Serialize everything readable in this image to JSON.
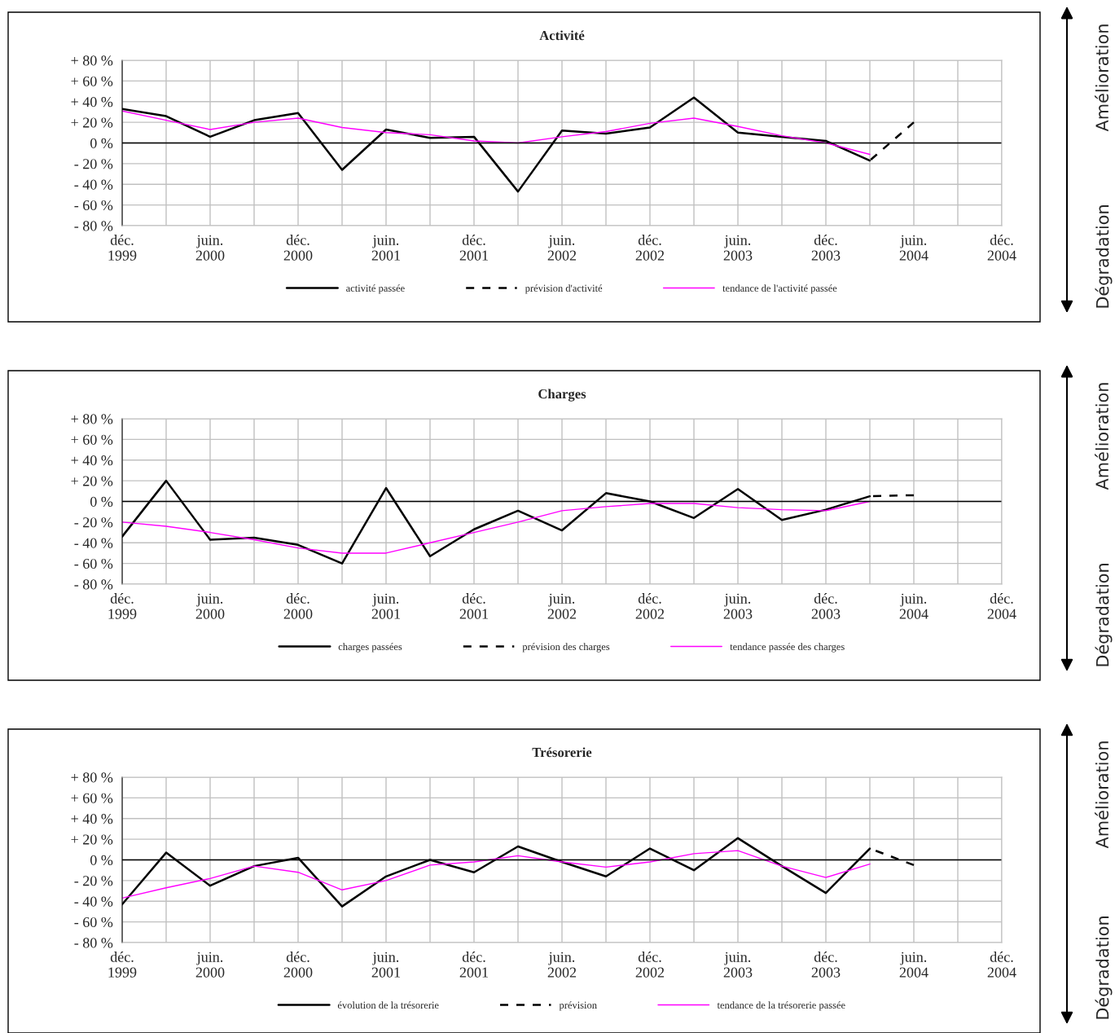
{
  "chart_data": [
    {
      "type": "line",
      "title": "Activité",
      "categories": [
        "déc.\n1999",
        null,
        "juin.\n2000",
        null,
        "déc.\n2000",
        null,
        "juin.\n2001",
        null,
        "déc.\n2001",
        null,
        "juin.\n2002",
        null,
        "déc.\n2002",
        null,
        "juin.\n2003",
        null,
        "déc.\n2003",
        null,
        "juin.\n2004",
        null,
        "déc.\n2004"
      ],
      "ylim": [
        -80,
        80
      ],
      "yticks": [
        {
          "value": -80,
          "label": "- 80 %"
        },
        {
          "value": -60,
          "label": "- 60 %"
        },
        {
          "value": -40,
          "label": "- 40 %"
        },
        {
          "value": -20,
          "label": "- 20 %"
        },
        {
          "value": 0,
          "label": "0 %"
        },
        {
          "value": 20,
          "label": "+ 20 %"
        },
        {
          "value": 40,
          "label": "+ 40 %"
        },
        {
          "value": 60,
          "label": "+ 60 %"
        },
        {
          "value": 80,
          "label": "+ 80 %"
        }
      ],
      "grid": true,
      "legend": "bottom",
      "ref_lines": [
        {
          "axis": "y",
          "value": 0,
          "color": "#000000"
        }
      ],
      "annotations": [
        "Amélioration",
        "Dégradation"
      ],
      "series": [
        {
          "name": "activité passée",
          "color": "#000000",
          "line_style": "solid",
          "values": [
            33,
            26,
            6,
            22,
            29,
            -26,
            13,
            5,
            6,
            -47,
            12,
            9,
            15,
            44,
            10,
            6,
            2,
            -17,
            null,
            null,
            null
          ]
        },
        {
          "name": "prévision d'activité",
          "color": "#000000",
          "line_style": "dashed",
          "values": [
            null,
            null,
            null,
            null,
            null,
            null,
            null,
            null,
            null,
            null,
            null,
            null,
            null,
            null,
            null,
            null,
            null,
            -17,
            20,
            null,
            null
          ]
        },
        {
          "name": "tendance de l'activité passée",
          "color": "#ff00ff",
          "line_style": "solid",
          "values": [
            31,
            22,
            13,
            20,
            24,
            15,
            10,
            8,
            2,
            0,
            6,
            11,
            19,
            24,
            16,
            7,
            0,
            -11,
            null,
            null,
            null
          ]
        }
      ]
    },
    {
      "type": "line",
      "title": "Charges",
      "categories": [
        "déc.\n1999",
        null,
        "juin.\n2000",
        null,
        "déc.\n2000",
        null,
        "juin.\n2001",
        null,
        "déc.\n2001",
        null,
        "juin.\n2002",
        null,
        "déc.\n2002",
        null,
        "juin.\n2003",
        null,
        "déc.\n2003",
        null,
        "juin.\n2004",
        null,
        "déc.\n2004"
      ],
      "ylim": [
        -80,
        80
      ],
      "yticks": [
        {
          "value": -80,
          "label": "- 80 %"
        },
        {
          "value": -60,
          "label": "- 60 %"
        },
        {
          "value": -40,
          "label": "- 40 %"
        },
        {
          "value": -20,
          "label": "- 20 %"
        },
        {
          "value": 0,
          "label": "0 %"
        },
        {
          "value": 20,
          "label": "+ 20 %"
        },
        {
          "value": 40,
          "label": "+ 40 %"
        },
        {
          "value": 60,
          "label": "+ 60 %"
        },
        {
          "value": 80,
          "label": "+ 80 %"
        }
      ],
      "grid": true,
      "legend": "bottom",
      "ref_lines": [
        {
          "axis": "y",
          "value": 0,
          "color": "#000000"
        }
      ],
      "annotations": [
        "Amélioration",
        "Dégradation"
      ],
      "series": [
        {
          "name": "charges passées",
          "color": "#000000",
          "line_style": "solid",
          "values": [
            -34,
            20,
            -37,
            -35,
            -42,
            -60,
            13,
            -53,
            -27,
            -9,
            -28,
            8,
            0,
            -16,
            12,
            -18,
            -8,
            5,
            null,
            null,
            null
          ]
        },
        {
          "name": "prévision des charges",
          "color": "#000000",
          "line_style": "dashed",
          "values": [
            null,
            null,
            null,
            null,
            null,
            null,
            null,
            null,
            null,
            null,
            null,
            null,
            null,
            null,
            null,
            null,
            null,
            5,
            6,
            null,
            null
          ]
        },
        {
          "name": "tendance passée des charges",
          "color": "#ff00ff",
          "line_style": "solid",
          "values": [
            -20,
            -24,
            -30,
            -37,
            -45,
            -50,
            -50,
            -40,
            -30,
            -20,
            -9,
            -5,
            -2,
            -2,
            -6,
            -8,
            -9,
            0,
            null,
            null,
            null
          ]
        }
      ]
    },
    {
      "type": "line",
      "title": "Trésorerie",
      "categories": [
        "déc.\n1999",
        null,
        "juin.\n2000",
        null,
        "déc.\n2000",
        null,
        "juin.\n2001",
        null,
        "déc.\n2001",
        null,
        "juin.\n2002",
        null,
        "déc.\n2002",
        null,
        "juin.\n2003",
        null,
        "déc.\n2003",
        null,
        "juin.\n2004",
        null,
        "déc.\n2004"
      ],
      "ylim": [
        -80,
        80
      ],
      "yticks": [
        {
          "value": -80,
          "label": "- 80 %"
        },
        {
          "value": -60,
          "label": "- 60 %"
        },
        {
          "value": -40,
          "label": "- 40 %"
        },
        {
          "value": -20,
          "label": "- 20 %"
        },
        {
          "value": 0,
          "label": "0 %"
        },
        {
          "value": 20,
          "label": "+ 20 %"
        },
        {
          "value": 40,
          "label": "+ 40 %"
        },
        {
          "value": 60,
          "label": "+ 60 %"
        },
        {
          "value": 80,
          "label": "+ 80 %"
        }
      ],
      "grid": true,
      "legend": "bottom",
      "ref_lines": [
        {
          "axis": "y",
          "value": 0,
          "color": "#000000"
        }
      ],
      "annotations": [
        "Amélioration",
        "Dégradation"
      ],
      "series": [
        {
          "name": "évolution de la trésorerie",
          "color": "#000000",
          "line_style": "solid",
          "values": [
            -43,
            7,
            -25,
            -6,
            2,
            -45,
            -16,
            0,
            -12,
            13,
            -2,
            -16,
            11,
            -10,
            21,
            -6,
            -32,
            11,
            null,
            null,
            null
          ]
        },
        {
          "name": "prévision",
          "color": "#000000",
          "line_style": "dashed",
          "values": [
            null,
            null,
            null,
            null,
            null,
            null,
            null,
            null,
            null,
            null,
            null,
            null,
            null,
            null,
            null,
            null,
            null,
            11,
            -5,
            null,
            null
          ]
        },
        {
          "name": "tendance de la trésorerie passée",
          "color": "#ff00ff",
          "line_style": "solid",
          "values": [
            -37,
            -27,
            -18,
            -6,
            -12,
            -29,
            -20,
            -5,
            -2,
            4,
            -2,
            -7,
            -2,
            6,
            9,
            -6,
            -17,
            -4,
            null,
            null,
            null
          ]
        }
      ]
    }
  ]
}
